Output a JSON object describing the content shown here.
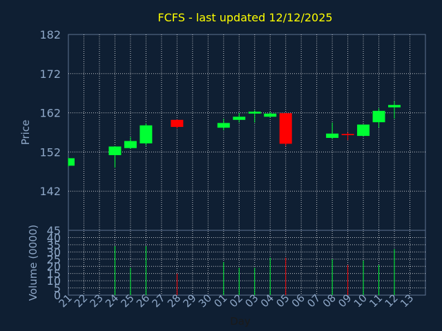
{
  "chart_data": {
    "type": "candlestick",
    "title": "FCFS - last updated 12/12/2025",
    "price_panel": {
      "ylabel": "Price",
      "yticks": [
        182,
        172,
        162,
        152,
        142
      ],
      "ylim": [
        132,
        182
      ]
    },
    "volume_panel": {
      "ylabel": "Volume (0000)",
      "yticks": [
        45,
        40,
        35,
        30,
        25,
        20,
        15,
        10,
        5,
        0
      ],
      "ylim": [
        0,
        45
      ]
    },
    "xlabel": "Day",
    "x_ticks": [
      "21",
      "22",
      "23",
      "24",
      "25",
      "26",
      "27",
      "28",
      "29",
      "30",
      "01",
      "02",
      "03",
      "04",
      "05",
      "06",
      "07",
      "08",
      "09",
      "10",
      "11",
      "12",
      "13"
    ],
    "grid": true,
    "colors": {
      "background": "#0f1f33",
      "axis_text": "#8fa8c8",
      "title": "#ffff00",
      "up": "#00ff33",
      "down": "#ff0000",
      "grid": "#ffffff"
    },
    "candles": [
      {
        "day": "21",
        "open": 148.5,
        "high": 150.5,
        "low": 148.3,
        "close": 150.4,
        "volume": 0
      },
      {
        "day": "24",
        "open": 151.2,
        "high": 153.5,
        "low": 148.0,
        "close": 153.4,
        "volume": 34
      },
      {
        "day": "25",
        "open": 153.0,
        "high": 155.8,
        "low": 152.8,
        "close": 154.8,
        "volume": 19
      },
      {
        "day": "26",
        "open": 154.2,
        "high": 159.3,
        "low": 153.6,
        "close": 158.8,
        "volume": 34
      },
      {
        "day": "28",
        "open": 160.2,
        "high": 160.3,
        "low": 158.0,
        "close": 158.4,
        "volume": 15
      },
      {
        "day": "01",
        "open": 158.2,
        "high": 160.5,
        "low": 157.5,
        "close": 159.4,
        "volume": 23
      },
      {
        "day": "02",
        "open": 160.2,
        "high": 162.0,
        "low": 159.5,
        "close": 161.0,
        "volume": 19
      },
      {
        "day": "03",
        "open": 161.8,
        "high": 162.7,
        "low": 159.5,
        "close": 162.3,
        "volume": 19
      },
      {
        "day": "04",
        "open": 161.0,
        "high": 162.2,
        "low": 160.8,
        "close": 161.8,
        "volume": 26
      },
      {
        "day": "05",
        "open": 161.9,
        "high": 162.0,
        "low": 153.5,
        "close": 154.1,
        "volume": 26
      },
      {
        "day": "08",
        "open": 155.6,
        "high": 159.5,
        "low": 155.3,
        "close": 156.7,
        "volume": 25
      },
      {
        "day": "09",
        "open": 156.6,
        "high": 157.0,
        "low": 155.0,
        "close": 156.3,
        "volume": 21
      },
      {
        "day": "10",
        "open": 156.1,
        "high": 159.0,
        "low": 156.0,
        "close": 159.0,
        "volume": 24
      },
      {
        "day": "11",
        "open": 159.6,
        "high": 163.2,
        "low": 158.2,
        "close": 162.5,
        "volume": 21
      },
      {
        "day": "12",
        "open": 163.4,
        "high": 165.0,
        "low": 160.5,
        "close": 164.0,
        "volume": 32
      }
    ]
  }
}
